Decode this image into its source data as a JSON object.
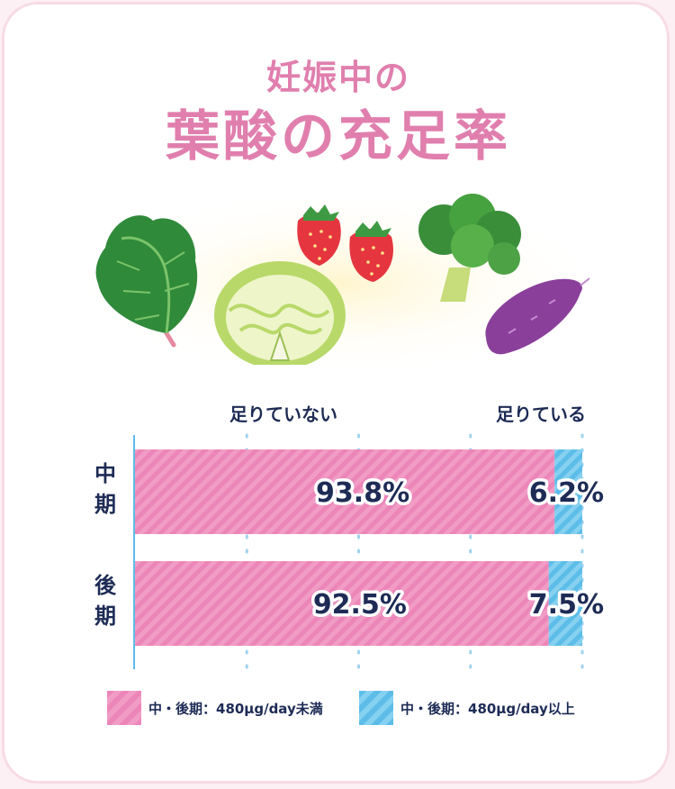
{
  "title": {
    "line1": "妊娠中の",
    "line2": "葉酸の充足率"
  },
  "illustration": {
    "icons": [
      "spinach-icon",
      "cabbage-icon",
      "strawberry-icon",
      "broccoli-icon",
      "sweet-potato-icon"
    ]
  },
  "chart_data": {
    "type": "bar",
    "orientation": "horizontal",
    "stacked": true,
    "percent": true,
    "header_labels": {
      "left": "足りていない",
      "right": "足りている"
    },
    "categories": [
      "中期",
      "後期"
    ],
    "series": [
      {
        "name": "中・後期：480μg/day未満",
        "values": [
          93.8,
          92.5
        ],
        "labels": [
          "93.8%",
          "92.5%"
        ],
        "color": "#ec86b9"
      },
      {
        "name": "中・後期：480μg/day以上",
        "values": [
          6.2,
          7.5
        ],
        "labels": [
          "6.2%",
          "7.5%"
        ],
        "color": "#5cbde8"
      }
    ],
    "xlim": [
      0,
      100
    ],
    "grid": true,
    "legend": "bottom"
  },
  "colors": {
    "title": "#e07fae",
    "text": "#1d2b55",
    "pink": "#ec86b9",
    "blue": "#5cbde8",
    "card_border": "#f7dbe5"
  }
}
